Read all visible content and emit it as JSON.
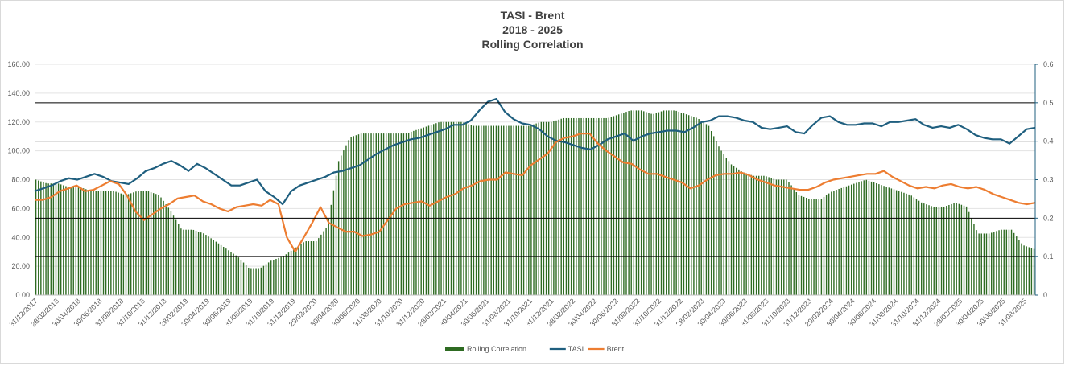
{
  "chart_data": {
    "type": "combo-bar-line",
    "title_lines": [
      "TASI - Brent",
      "2018  -  2025",
      "Rolling Correlation"
    ],
    "x_tick_labels": [
      "31/12/2017",
      "28/02/2018",
      "30/04/2018",
      "30/06/2018",
      "31/08/2018",
      "31/10/2018",
      "31/12/2018",
      "28/02/2019",
      "30/04/2019",
      "30/06/2019",
      "31/08/2019",
      "31/10/2019",
      "31/12/2019",
      "29/02/2020",
      "30/04/2020",
      "30/06/2020",
      "31/08/2020",
      "31/10/2020",
      "31/12/2020",
      "28/02/2021",
      "30/04/2021",
      "30/06/2021",
      "31/08/2021",
      "31/10/2021",
      "31/12/2021",
      "28/02/2022",
      "30/04/2022",
      "30/06/2022",
      "31/08/2022",
      "31/10/2022",
      "31/12/2022",
      "28/02/2023",
      "30/04/2023",
      "30/06/2023",
      "31/08/2023",
      "31/10/2023",
      "31/12/2023",
      "29/02/2024",
      "30/04/2024",
      "30/06/2024",
      "31/08/2024",
      "31/10/2024",
      "31/12/2024",
      "28/02/2025",
      "30/04/2025",
      "30/06/2025",
      "31/08/2025"
    ],
    "y_left": {
      "ticks": [
        "0.00",
        "20.00",
        "40.00",
        "60.00",
        "80.00",
        "100.00",
        "120.00",
        "140.00",
        "160.00"
      ],
      "min": 0,
      "max": 160
    },
    "y_right": {
      "ticks": [
        "0",
        "0.1",
        "0.2",
        "0.3",
        "0.4",
        "0.5",
        "0.6"
      ],
      "min": 0,
      "max": 0.6
    },
    "reference_lines_right_axis": [
      0.1,
      0.2,
      0.4,
      0.5
    ],
    "legend": [
      "Rolling Correlation",
      "TASI",
      "Brent"
    ],
    "legend_position": "bottom",
    "series": [
      {
        "name": "Rolling Correlation",
        "type": "bar",
        "axis": "right",
        "color": "#2e6b22",
        "values": [
          0.3,
          0.29,
          0.29,
          0.28,
          0.28,
          0.27,
          0.27,
          0.27,
          0.26,
          0.27,
          0.27,
          0.26,
          0.22,
          0.17,
          0.17,
          0.16,
          0.14,
          0.12,
          0.1,
          0.07,
          0.07,
          0.09,
          0.1,
          0.12,
          0.14,
          0.14,
          0.18,
          0.35,
          0.41,
          0.42,
          0.42,
          0.42,
          0.42,
          0.42,
          0.43,
          0.44,
          0.45,
          0.45,
          0.45,
          0.44,
          0.44,
          0.44,
          0.44,
          0.44,
          0.44,
          0.45,
          0.45,
          0.46,
          0.46,
          0.46,
          0.46,
          0.46,
          0.47,
          0.48,
          0.48,
          0.47,
          0.48,
          0.48,
          0.47,
          0.46,
          0.44,
          0.38,
          0.34,
          0.32,
          0.31,
          0.31,
          0.3,
          0.3,
          0.26,
          0.25,
          0.25,
          0.27,
          0.28,
          0.29,
          0.3,
          0.29,
          0.28,
          0.27,
          0.26,
          0.24,
          0.23,
          0.23,
          0.24,
          0.23,
          0.16,
          0.16,
          0.17,
          0.17,
          0.13,
          0.12
        ]
      },
      {
        "name": "TASI",
        "type": "line",
        "axis": "left",
        "color": "#1f5f7f",
        "values": [
          72,
          74,
          76,
          79,
          81,
          80,
          82,
          84,
          82,
          79,
          78,
          77,
          81,
          86,
          88,
          91,
          93,
          90,
          86,
          91,
          88,
          84,
          80,
          76,
          76,
          78,
          80,
          72,
          68,
          63,
          72,
          76,
          78,
          80,
          82,
          85,
          86,
          88,
          90,
          94,
          98,
          101,
          104,
          106,
          108,
          109,
          111,
          113,
          115,
          118,
          118,
          121,
          128,
          134,
          136,
          127,
          122,
          119,
          118,
          115,
          110,
          107,
          106,
          104,
          102,
          101,
          104,
          108,
          110,
          112,
          107,
          110,
          112,
          113,
          114,
          114,
          113,
          116,
          120,
          121,
          124,
          124,
          123,
          121,
          120,
          116,
          115,
          116,
          117,
          113,
          112,
          118,
          123,
          124,
          120,
          118,
          118,
          119,
          119,
          117,
          120,
          120,
          121,
          122,
          118,
          116,
          117,
          116,
          118,
          115,
          111,
          109,
          108,
          108,
          105,
          110,
          115,
          116
        ]
      },
      {
        "name": "Brent",
        "type": "line",
        "axis": "left",
        "color": "#ed7d31",
        "values": [
          66,
          66,
          68,
          72,
          74,
          76,
          72,
          73,
          76,
          79,
          77,
          69,
          58,
          52,
          56,
          60,
          63,
          67,
          68,
          69,
          65,
          63,
          60,
          58,
          61,
          62,
          63,
          62,
          66,
          63,
          40,
          30,
          40,
          50,
          61,
          50,
          47,
          44,
          44,
          41,
          42,
          44,
          52,
          60,
          63,
          64,
          65,
          62,
          65,
          68,
          70,
          74,
          76,
          79,
          80,
          80,
          85,
          84,
          83,
          90,
          94,
          98,
          106,
          109,
          110,
          112,
          112,
          105,
          100,
          96,
          92,
          91,
          87,
          84,
          84,
          82,
          80,
          78,
          74,
          76,
          80,
          83,
          84,
          84,
          85,
          83,
          80,
          78,
          76,
          75,
          74,
          73,
          73,
          75,
          78,
          80,
          81,
          82,
          83,
          84,
          84,
          86,
          82,
          79,
          76,
          74,
          75,
          74,
          76,
          77,
          75,
          74,
          75,
          73,
          70,
          68,
          66,
          64,
          63,
          64
        ]
      }
    ]
  }
}
